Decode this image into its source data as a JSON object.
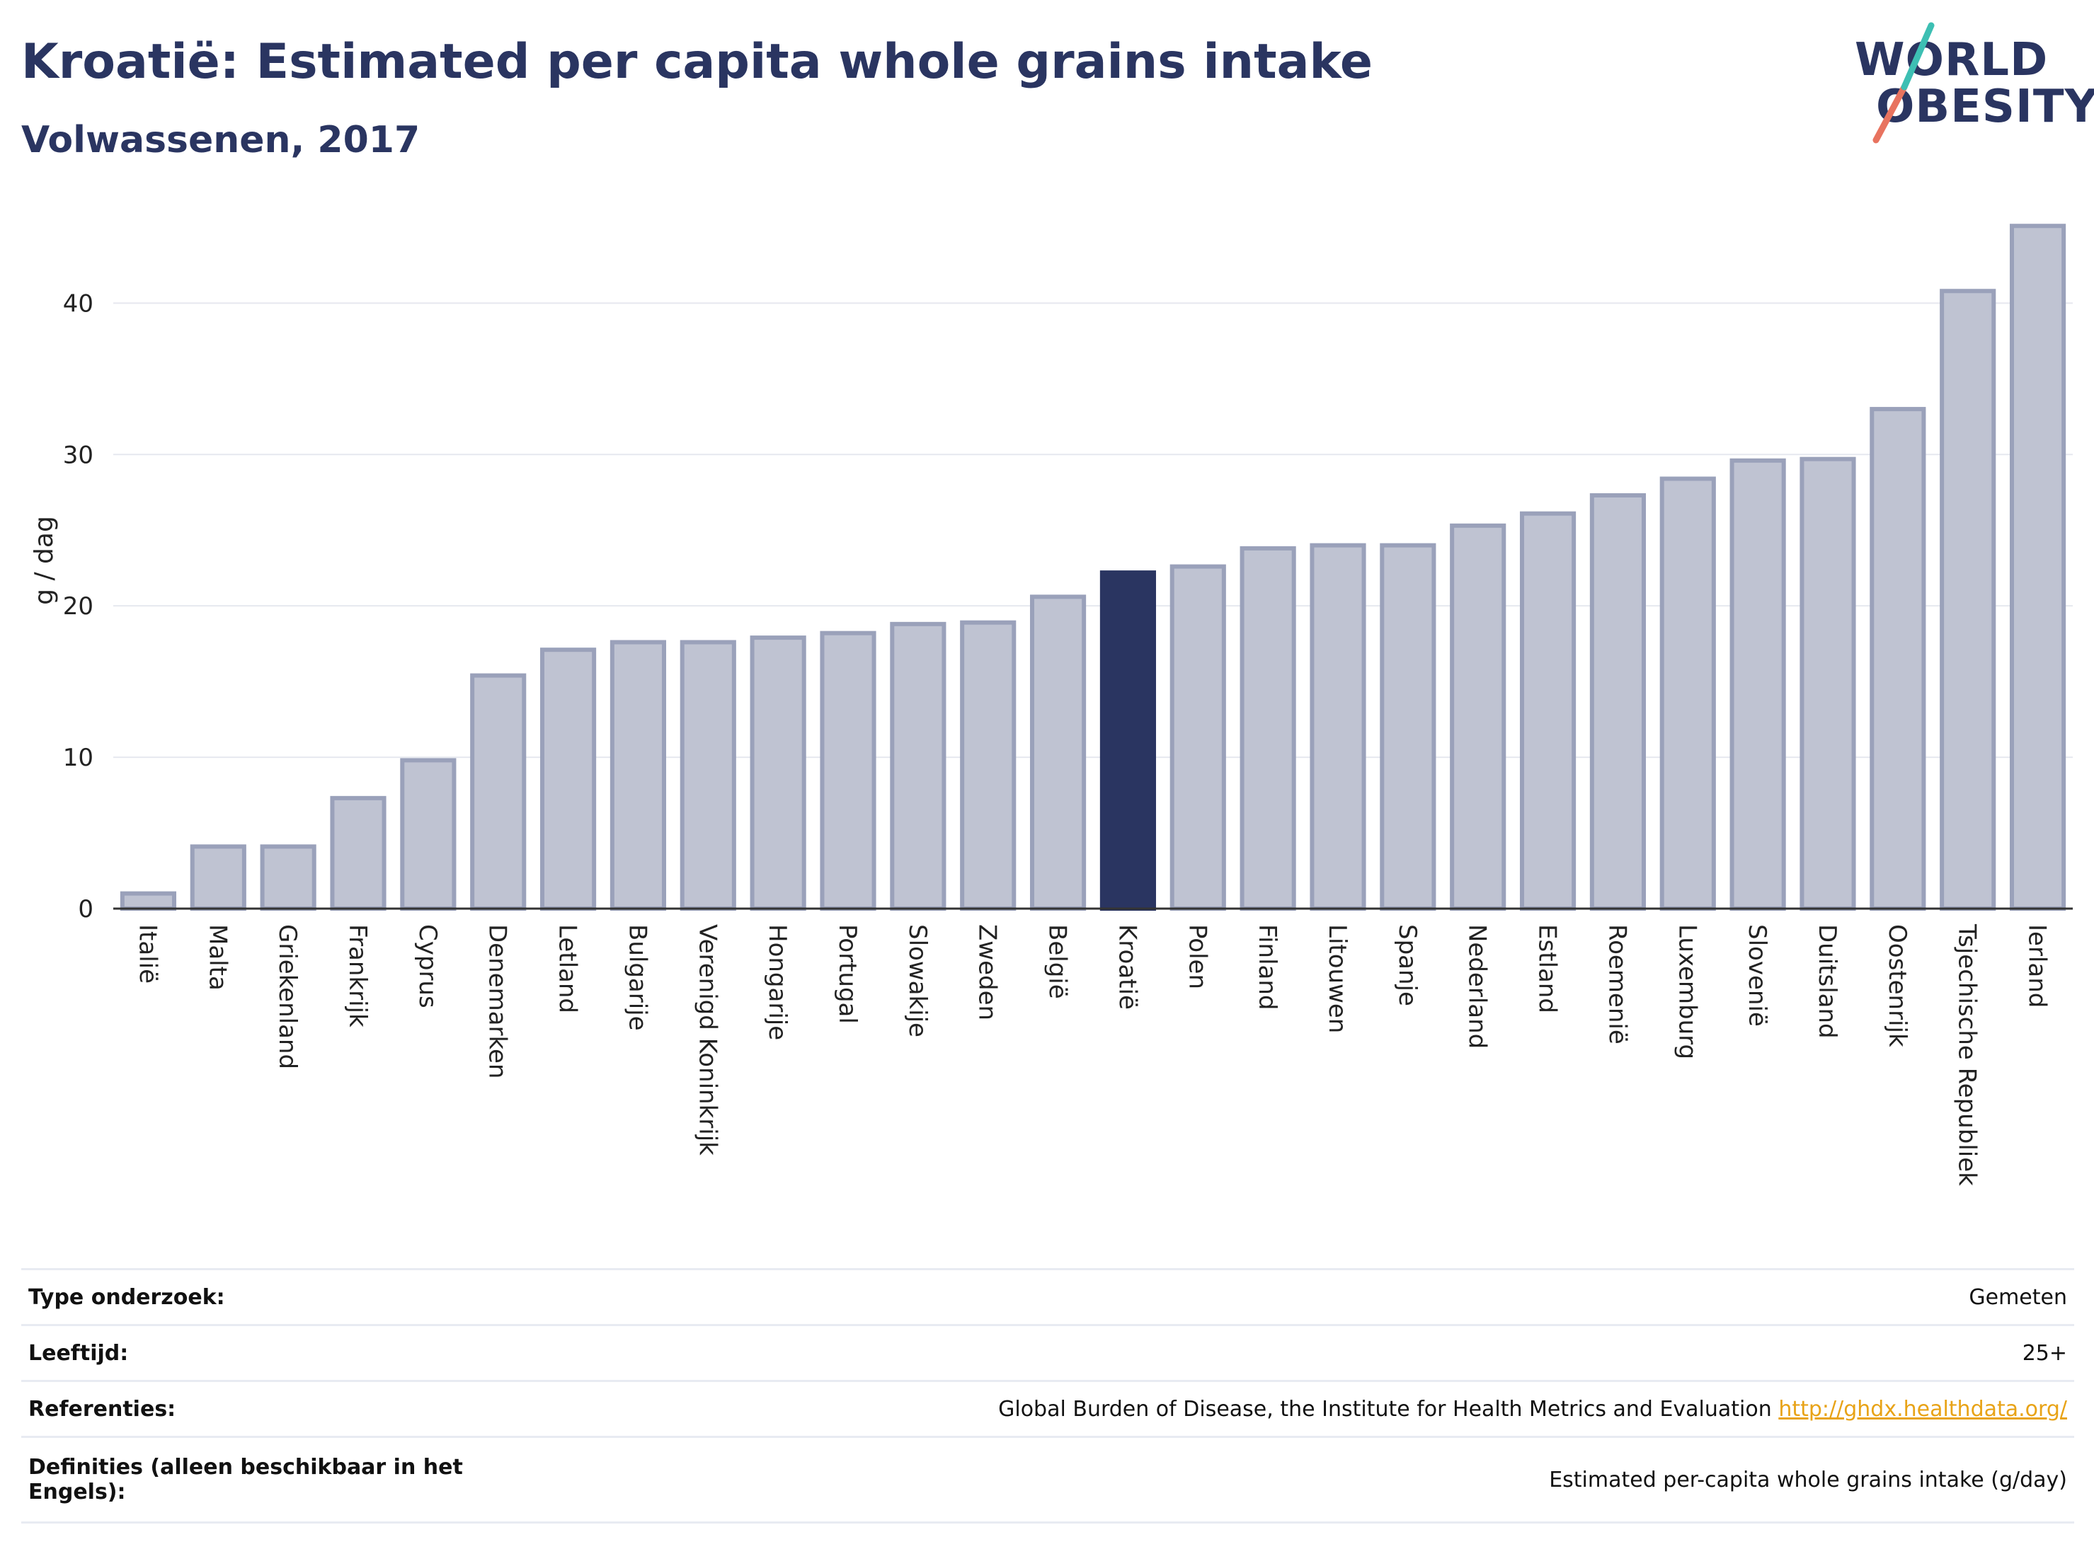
{
  "title": "Kroatië: Estimated per capita whole grains intake",
  "subtitle": "Volwassenen, 2017",
  "logo": {
    "line1": "WORLD",
    "line2": "OBESITY"
  },
  "colors": {
    "highlight": "#2a3561",
    "bar": "#bfc3d2",
    "bar_edge": "#9aa1ba",
    "grid": "#e6e8ef",
    "link": "#e8a317"
  },
  "chart_data": {
    "type": "bar",
    "ylabel": "g / dag",
    "ylim": [
      0,
      46
    ],
    "yticks": [
      0,
      10,
      20,
      30,
      40
    ],
    "grid": true,
    "highlight": "Kroatië",
    "categories": [
      "Italië",
      "Malta",
      "Griekenland",
      "Frankrijk",
      "Cyprus",
      "Denemarken",
      "Letland",
      "Bulgarije",
      "Verenigd Koninkrijk",
      "Hongarije",
      "Portugal",
      "Slowakije",
      "Zweden",
      "België",
      "Kroatië",
      "Polen",
      "Finland",
      "Litouwen",
      "Spanje",
      "Nederland",
      "Estland",
      "Roemenië",
      "Luxemburg",
      "Slovenië",
      "Duitsland",
      "Oostenrijk",
      "Tsjechische Republiek",
      "Ierland"
    ],
    "values": [
      1.0,
      4.1,
      4.1,
      7.3,
      9.8,
      15.4,
      17.1,
      17.6,
      17.6,
      17.9,
      18.2,
      18.8,
      18.9,
      20.6,
      22.2,
      22.6,
      23.8,
      24.0,
      24.0,
      25.3,
      26.1,
      27.3,
      28.4,
      29.6,
      29.7,
      33.0,
      40.8,
      45.1
    ]
  },
  "footer": [
    {
      "key": "Type onderzoek:",
      "value": "Gemeten"
    },
    {
      "key": "Leeftijd:",
      "value": "25+"
    },
    {
      "key": "Referenties:",
      "value": "Global Burden of Disease, the Institute for Health Metrics and Evaluation",
      "link": "http://ghdx.healthdata.org/"
    },
    {
      "key": "Definities (alleen beschikbaar in het Engels):",
      "value": "Estimated per-capita whole grains intake (g/day)"
    }
  ]
}
